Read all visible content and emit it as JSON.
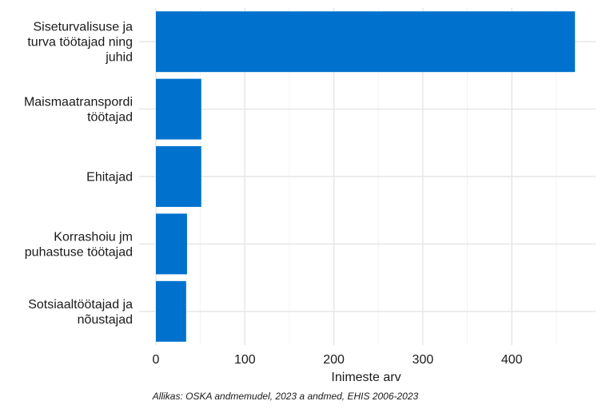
{
  "chart_data": {
    "type": "bar",
    "orientation": "horizontal",
    "categories": [
      [
        "Siseturvalisuse ja",
        "turva töötajad ning",
        "juhid"
      ],
      [
        "Maismaatranspordi",
        "töötajad"
      ],
      [
        "Ehitajad"
      ],
      [
        "Korrashoiu jm",
        "puhastuse töötajad"
      ],
      [
        "Sotsiaaltöötajad ja",
        "nõustajad"
      ]
    ],
    "values": [
      471,
      51,
      51,
      35,
      34
    ],
    "xlabel": "Inimeste arv",
    "ylabel": "",
    "xlim": [
      0,
      495
    ],
    "xticks": [
      0,
      100,
      200,
      300,
      400
    ],
    "grid": true,
    "bar_color": "#0072ce",
    "caption": "Allikas: OSKA andmemudel, 2023 a andmed, EHIS 2006-2023"
  }
}
